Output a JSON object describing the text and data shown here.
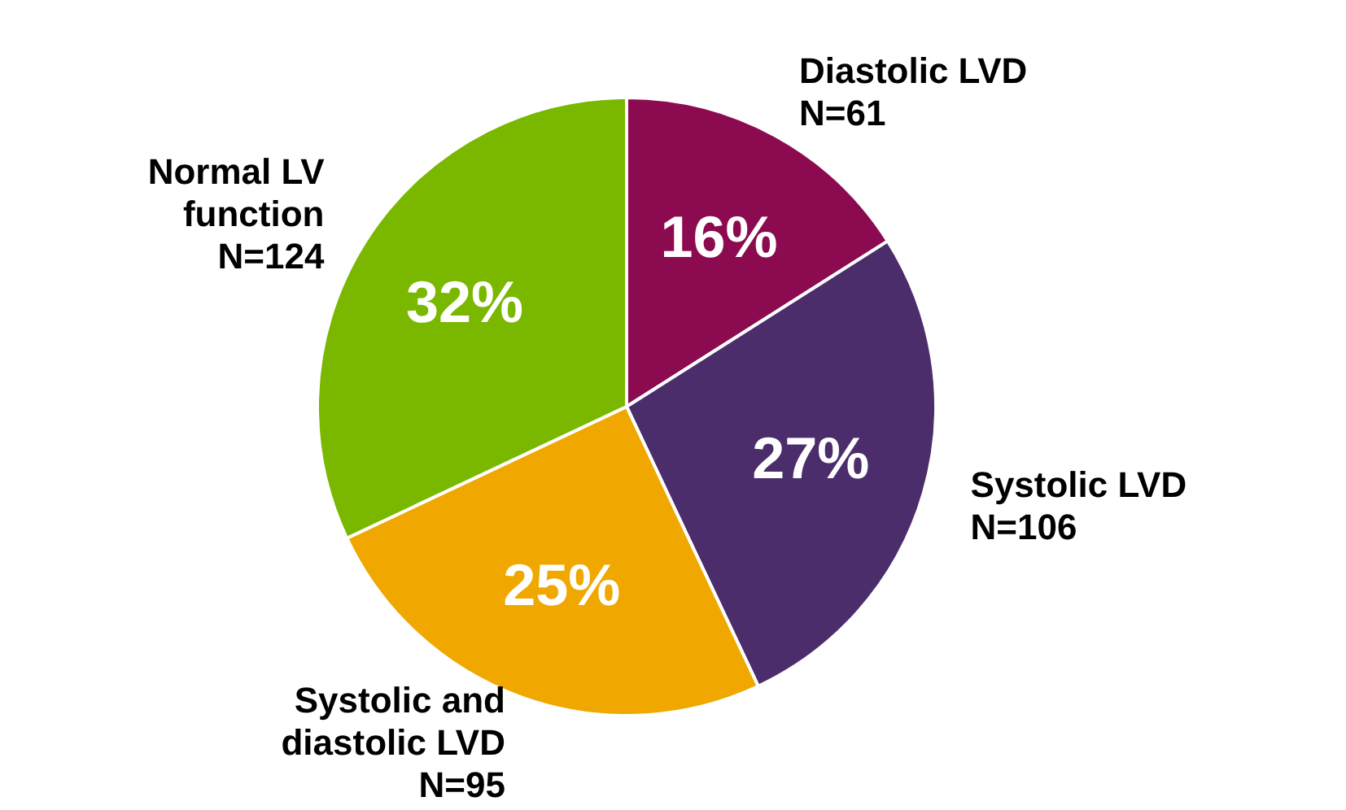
{
  "chart_data": {
    "type": "pie",
    "categories": [
      "Diastolic LVD",
      "Systolic LVD",
      "Systolic and diastolic LVD",
      "Normal LV function"
    ],
    "values": [
      16,
      27,
      25,
      32
    ],
    "colors": [
      "#8b0a50",
      "#4b2d6b",
      "#f0a800",
      "#7ab800"
    ],
    "value_labels": [
      "16%",
      "27%",
      "25%",
      "32%"
    ],
    "annotations": [
      "N=61",
      "N=106",
      "N=95",
      "N=124"
    ],
    "legend": false
  }
}
